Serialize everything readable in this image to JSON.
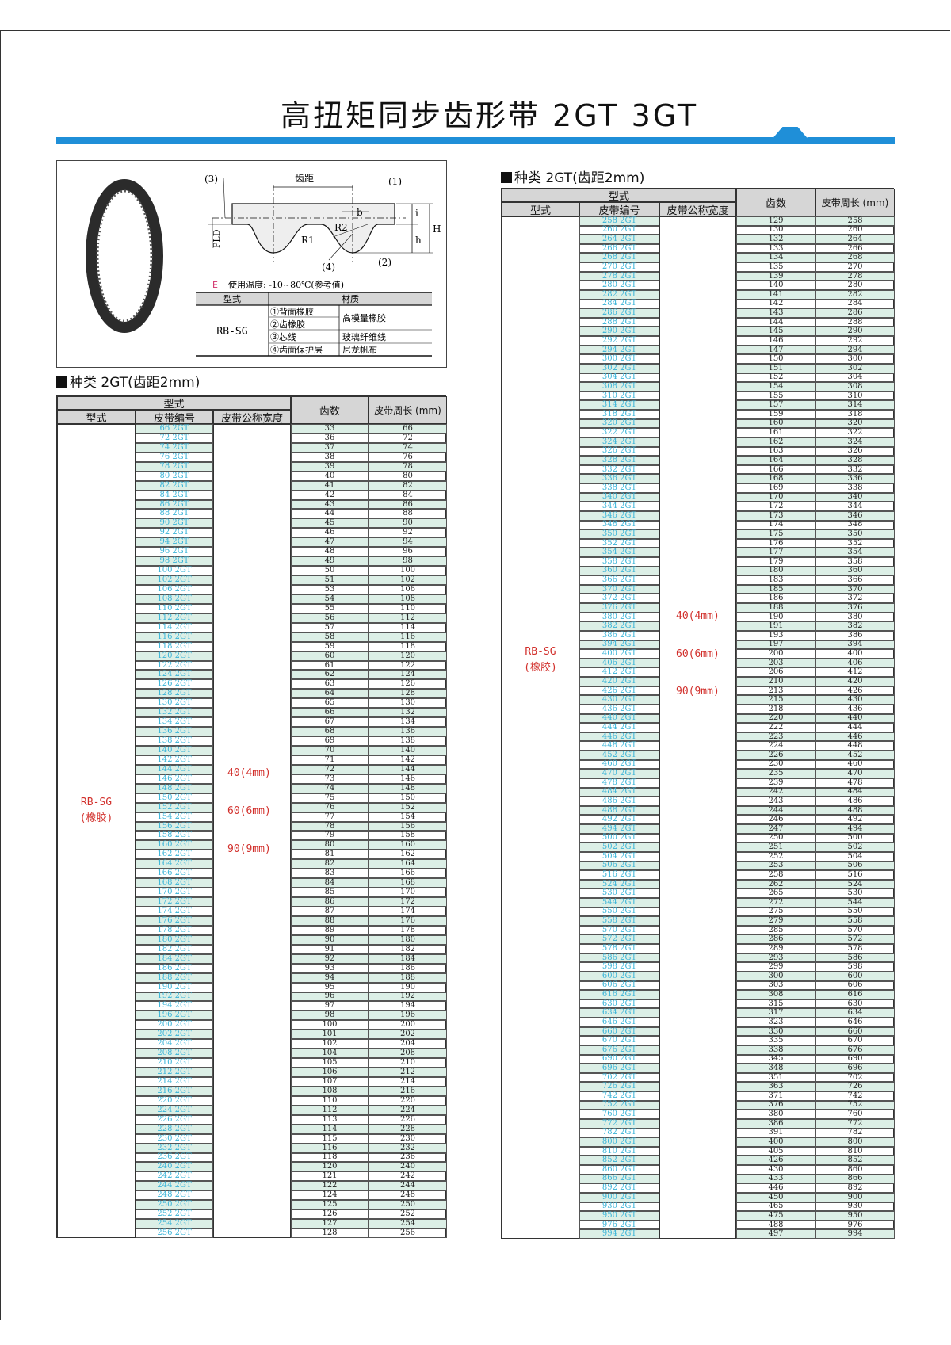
{
  "title": "高扭矩同步齿形带 2GT 3GT",
  "colors": {
    "accent_bar": "#1f8fd8",
    "belt_number": "#3ab4d8",
    "red_label": "#d2302c",
    "stripe": "#dcefe6",
    "header_bg": "#d6d6d6"
  },
  "diagram": {
    "labels": {
      "p3": "(3)",
      "pitch": "齿距",
      "p1": "(1)",
      "b": "b",
      "i": "i",
      "H": "H",
      "h": "h",
      "R2": "R2",
      "R1": "R1",
      "PLD": "PLD",
      "p4": "(4)",
      "p2": "(2)"
    },
    "temp_marker": "E",
    "temp_text": "使用温度: -10~80℃(参考值)",
    "material_table": {
      "col_type": "型式",
      "col_material": "材质",
      "type": "RB-SG",
      "parts": [
        "①背面橡胶",
        "②齿橡胶",
        "③芯线",
        "④齿面保护层"
      ],
      "materials": [
        "高模量橡胶",
        "玻璃纤维线",
        "尼龙帆布"
      ]
    }
  },
  "table_headers": {
    "group": "型式",
    "type": "型式",
    "belt_no": "皮带编号",
    "width": "皮带公称宽度",
    "teeth": "齿数",
    "length": "皮带周长 (mm)"
  },
  "tables": [
    {
      "heading": "种类 2GT(齿距2mm)",
      "type_label": "RB-SG",
      "type_sub": "(橡胶)",
      "widths": [
        "40(4mm)",
        "60(6mm)",
        "90(9mm)"
      ],
      "rows": [
        [
          "66 2GT",
          33,
          66
        ],
        [
          "72 2GT",
          36,
          72
        ],
        [
          "74 2GT",
          37,
          74
        ],
        [
          "76 2GT",
          38,
          76
        ],
        [
          "78 2GT",
          39,
          78
        ],
        [
          "80 2GT",
          40,
          80
        ],
        [
          "82 2GT",
          41,
          82
        ],
        [
          "84 2GT",
          42,
          84
        ],
        [
          "86 2GT",
          43,
          86
        ],
        [
          "88 2GT",
          44,
          88
        ],
        [
          "90 2GT",
          45,
          90
        ],
        [
          "92 2GT",
          46,
          92
        ],
        [
          "94 2GT",
          47,
          94
        ],
        [
          "96 2GT",
          48,
          96
        ],
        [
          "98 2GT",
          49,
          98
        ],
        [
          "100 2GT",
          50,
          100
        ],
        [
          "102 2GT",
          51,
          102
        ],
        [
          "106 2GT",
          53,
          106
        ],
        [
          "108 2GT",
          54,
          108
        ],
        [
          "110 2GT",
          55,
          110
        ],
        [
          "112 2GT",
          56,
          112
        ],
        [
          "114 2GT",
          57,
          114
        ],
        [
          "116 2GT",
          58,
          116
        ],
        [
          "118 2GT",
          59,
          118
        ],
        [
          "120 2GT",
          60,
          120
        ],
        [
          "122 2GT",
          61,
          122
        ],
        [
          "124 2GT",
          62,
          124
        ],
        [
          "126 2GT",
          63,
          126
        ],
        [
          "128 2GT",
          64,
          128
        ],
        [
          "130 2GT",
          65,
          130
        ],
        [
          "132 2GT",
          66,
          132
        ],
        [
          "134 2GT",
          67,
          134
        ],
        [
          "136 2GT",
          68,
          136
        ],
        [
          "138 2GT",
          69,
          138
        ],
        [
          "140 2GT",
          70,
          140
        ],
        [
          "142 2GT",
          71,
          142
        ],
        [
          "144 2GT",
          72,
          144
        ],
        [
          "146 2GT",
          73,
          146
        ],
        [
          "148 2GT",
          74,
          148
        ],
        [
          "150 2GT",
          75,
          150
        ],
        [
          "152 2GT",
          76,
          152
        ],
        [
          "154 2GT",
          77,
          154
        ],
        [
          "156 2GT",
          78,
          156
        ],
        [
          "158 2GT",
          79,
          158
        ],
        [
          "160 2GT",
          80,
          160
        ],
        [
          "162 2GT",
          81,
          162
        ],
        [
          "164 2GT",
          82,
          164
        ],
        [
          "166 2GT",
          83,
          166
        ],
        [
          "168 2GT",
          84,
          168
        ],
        [
          "170 2GT",
          85,
          170
        ],
        [
          "172 2GT",
          86,
          172
        ],
        [
          "174 2GT",
          87,
          174
        ],
        [
          "176 2GT",
          88,
          176
        ],
        [
          "178 2GT",
          89,
          178
        ],
        [
          "180 2GT",
          90,
          180
        ],
        [
          "182 2GT",
          91,
          182
        ],
        [
          "184 2GT",
          92,
          184
        ],
        [
          "186 2GT",
          93,
          186
        ],
        [
          "188 2GT",
          94,
          188
        ],
        [
          "190 2GT",
          95,
          190
        ],
        [
          "192 2GT",
          96,
          192
        ],
        [
          "194 2GT",
          97,
          194
        ],
        [
          "196 2GT",
          98,
          196
        ],
        [
          "200 2GT",
          100,
          200
        ],
        [
          "202 2GT",
          101,
          202
        ],
        [
          "204 2GT",
          102,
          204
        ],
        [
          "208 2GT",
          104,
          208
        ],
        [
          "210 2GT",
          105,
          210
        ],
        [
          "212 2GT",
          106,
          212
        ],
        [
          "214 2GT",
          107,
          214
        ],
        [
          "216 2GT",
          108,
          216
        ],
        [
          "220 2GT",
          110,
          220
        ],
        [
          "224 2GT",
          112,
          224
        ],
        [
          "226 2GT",
          113,
          226
        ],
        [
          "228 2GT",
          114,
          228
        ],
        [
          "230 2GT",
          115,
          230
        ],
        [
          "232 2GT",
          116,
          232
        ],
        [
          "236 2GT",
          118,
          236
        ],
        [
          "240 2GT",
          120,
          240
        ],
        [
          "242 2GT",
          121,
          242
        ],
        [
          "244 2GT",
          122,
          244
        ],
        [
          "248 2GT",
          124,
          248
        ],
        [
          "250 2GT",
          125,
          250
        ],
        [
          "252 2GT",
          126,
          252
        ],
        [
          "254 2GT",
          127,
          254
        ],
        [
          "256 2GT",
          128,
          256
        ]
      ]
    },
    {
      "heading": "种类 2GT(齿距2mm)",
      "type_label": "RB-SG",
      "type_sub": "(橡胶)",
      "widths": [
        "40(4mm)",
        "60(6mm)",
        "90(9mm)"
      ],
      "rows": [
        [
          "258 2GT",
          129,
          258
        ],
        [
          "260 2GT",
          130,
          260
        ],
        [
          "264 2GT",
          132,
          264
        ],
        [
          "266 2GT",
          133,
          266
        ],
        [
          "268 2GT",
          134,
          268
        ],
        [
          "270 2GT",
          135,
          270
        ],
        [
          "278 2GT",
          139,
          278
        ],
        [
          "280 2GT",
          140,
          280
        ],
        [
          "282 2GT",
          141,
          282
        ],
        [
          "284 2GT",
          142,
          284
        ],
        [
          "286 2GT",
          143,
          286
        ],
        [
          "288 2GT",
          144,
          288
        ],
        [
          "290 2GT",
          145,
          290
        ],
        [
          "292 2GT",
          146,
          292
        ],
        [
          "294 2GT",
          147,
          294
        ],
        [
          "300 2GT",
          150,
          300
        ],
        [
          "302 2GT",
          151,
          302
        ],
        [
          "304 2GT",
          152,
          304
        ],
        [
          "308 2GT",
          154,
          308
        ],
        [
          "310 2GT",
          155,
          310
        ],
        [
          "314 2GT",
          157,
          314
        ],
        [
          "318 2GT",
          159,
          318
        ],
        [
          "320 2GT",
          160,
          320
        ],
        [
          "322 2GT",
          161,
          322
        ],
        [
          "324 2GT",
          162,
          324
        ],
        [
          "326 2GT",
          163,
          326
        ],
        [
          "328 2GT",
          164,
          328
        ],
        [
          "332 2GT",
          166,
          332
        ],
        [
          "336 2GT",
          168,
          336
        ],
        [
          "338 2GT",
          169,
          338
        ],
        [
          "340 2GT",
          170,
          340
        ],
        [
          "344 2GT",
          172,
          344
        ],
        [
          "346 2GT",
          173,
          346
        ],
        [
          "348 2GT",
          174,
          348
        ],
        [
          "350 2GT",
          175,
          350
        ],
        [
          "352 2GT",
          176,
          352
        ],
        [
          "354 2GT",
          177,
          354
        ],
        [
          "358 2GT",
          179,
          358
        ],
        [
          "360 2GT",
          180,
          360
        ],
        [
          "366 2GT",
          183,
          366
        ],
        [
          "370 2GT",
          185,
          370
        ],
        [
          "372 2GT",
          186,
          372
        ],
        [
          "376 2GT",
          188,
          376
        ],
        [
          "380 2GT",
          190,
          380
        ],
        [
          "382 2GT",
          191,
          382
        ],
        [
          "386 2GT",
          193,
          386
        ],
        [
          "394 2GT",
          197,
          394
        ],
        [
          "400 2GT",
          200,
          400
        ],
        [
          "406 2GT",
          203,
          406
        ],
        [
          "412 2GT",
          206,
          412
        ],
        [
          "420 2GT",
          210,
          420
        ],
        [
          "426 2GT",
          213,
          426
        ],
        [
          "430 2GT",
          215,
          430
        ],
        [
          "436 2GT",
          218,
          436
        ],
        [
          "440 2GT",
          220,
          440
        ],
        [
          "444 2GT",
          222,
          444
        ],
        [
          "446 2GT",
          223,
          446
        ],
        [
          "448 2GT",
          224,
          448
        ],
        [
          "452 2GT",
          226,
          452
        ],
        [
          "460 2GT",
          230,
          460
        ],
        [
          "470 2GT",
          235,
          470
        ],
        [
          "478 2GT",
          239,
          478
        ],
        [
          "484 2GT",
          242,
          484
        ],
        [
          "486 2GT",
          243,
          486
        ],
        [
          "488 2GT",
          244,
          488
        ],
        [
          "492 2GT",
          246,
          492
        ],
        [
          "494 2GT",
          247,
          494
        ],
        [
          "500 2GT",
          250,
          500
        ],
        [
          "502 2GT",
          251,
          502
        ],
        [
          "504 2GT",
          252,
          504
        ],
        [
          "506 2GT",
          253,
          506
        ],
        [
          "516 2GT",
          258,
          516
        ],
        [
          "524 2GT",
          262,
          524
        ],
        [
          "530 2GT",
          265,
          530
        ],
        [
          "544 2GT",
          272,
          544
        ],
        [
          "550 2GT",
          275,
          550
        ],
        [
          "558 2GT",
          279,
          558
        ],
        [
          "570 2GT",
          285,
          570
        ],
        [
          "572 2GT",
          286,
          572
        ],
        [
          "578 2GT",
          289,
          578
        ],
        [
          "586 2GT",
          293,
          586
        ],
        [
          "598 2GT",
          299,
          598
        ],
        [
          "600 2GT",
          300,
          600
        ],
        [
          "606 2GT",
          303,
          606
        ],
        [
          "616 2GT",
          308,
          616
        ],
        [
          "630 2GT",
          315,
          630
        ],
        [
          "634 2GT",
          317,
          634
        ],
        [
          "646 2GT",
          323,
          646
        ],
        [
          "660 2GT",
          330,
          660
        ],
        [
          "670 2GT",
          335,
          670
        ],
        [
          "676 2GT",
          338,
          676
        ],
        [
          "690 2GT",
          345,
          690
        ],
        [
          "696 2GT",
          348,
          696
        ],
        [
          "702 2GT",
          351,
          702
        ],
        [
          "726 2GT",
          363,
          726
        ],
        [
          "742 2GT",
          371,
          742
        ],
        [
          "752 2GT",
          376,
          752
        ],
        [
          "760 2GT",
          380,
          760
        ],
        [
          "772 2GT",
          386,
          772
        ],
        [
          "782 2GT",
          391,
          782
        ],
        [
          "800 2GT",
          400,
          800
        ],
        [
          "810 2GT",
          405,
          810
        ],
        [
          "852 2GT",
          426,
          852
        ],
        [
          "860 2GT",
          430,
          860
        ],
        [
          "866 2GT",
          433,
          866
        ],
        [
          "892 2GT",
          446,
          892
        ],
        [
          "900 2GT",
          450,
          900
        ],
        [
          "930 2GT",
          465,
          930
        ],
        [
          "950 2GT",
          475,
          950
        ],
        [
          "976 2GT",
          488,
          976
        ],
        [
          "994 2GT",
          497,
          994
        ]
      ]
    }
  ]
}
